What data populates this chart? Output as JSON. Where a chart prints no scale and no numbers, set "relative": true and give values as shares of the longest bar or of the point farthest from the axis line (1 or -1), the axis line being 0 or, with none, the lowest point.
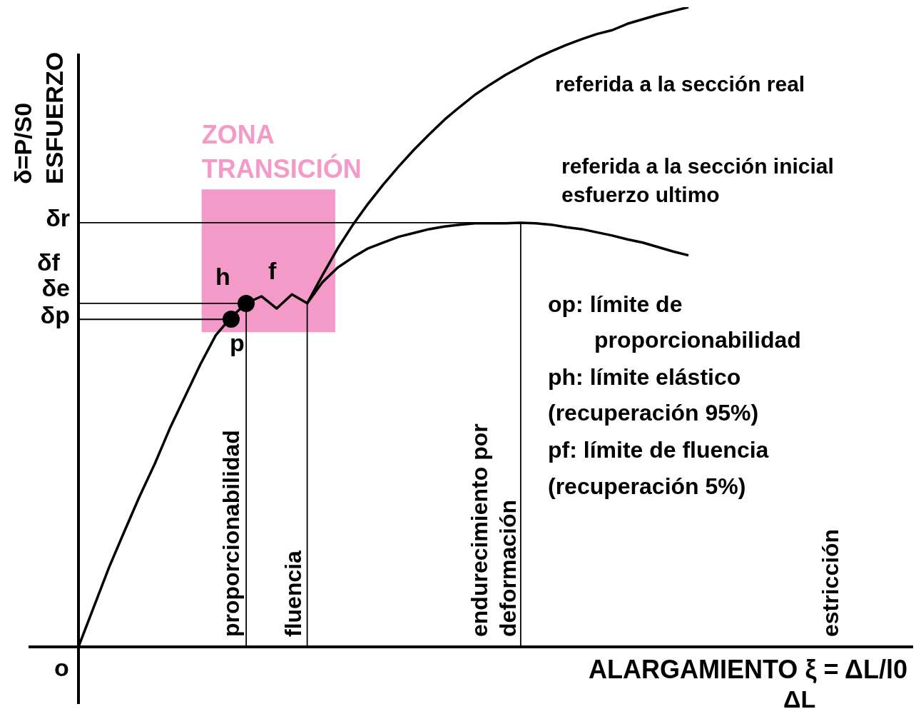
{
  "chart_data": {
    "type": "line",
    "relative": true,
    "xlabel": "ALARGAMIENTO ξ = ΔL/l0",
    "ylabel": "δ=P/S0 ESFUERZO",
    "categories": [
      null,
      null,
      null,
      null,
      null,
      null,
      null,
      null,
      null,
      null,
      null,
      null,
      null,
      null,
      null,
      null,
      null,
      null,
      null,
      null,
      null,
      null,
      null,
      null,
      null,
      null,
      null,
      null,
      null,
      null,
      null,
      null,
      null,
      null,
      null,
      null,
      null,
      null,
      null,
      null,
      null
    ],
    "series": [
      {
        "name": "referida a la sección inicial",
        "color": "#000000",
        "values": [
          0,
          0.062,
          0.124,
          0.18,
          0.235,
          0.286,
          0.342,
          0.392,
          0.442,
          0.487,
          0.515,
          0.537,
          0.548,
          0.529,
          0.551,
          0.537,
          0.57,
          0.593,
          0.609,
          0.623,
          0.632,
          0.641,
          0.647,
          0.653,
          0.657,
          0.66,
          0.662,
          0.662,
          0.662,
          0.663,
          0.662,
          0.66,
          0.656,
          0.653,
          0.648,
          0.643,
          0.637,
          0.632,
          0.625,
          0.618,
          0.612
        ]
      },
      {
        "name": "referida a la sección real",
        "color": "#000000",
        "values": [
          null,
          null,
          null,
          null,
          null,
          null,
          null,
          null,
          null,
          null,
          null,
          null,
          null,
          null,
          null,
          0.537,
          0.581,
          0.623,
          0.66,
          0.693,
          0.723,
          0.751,
          0.777,
          0.801,
          0.824,
          0.844,
          0.863,
          0.879,
          0.894,
          0.907,
          0.92,
          0.931,
          0.941,
          0.95,
          0.958,
          0.964,
          0.974,
          0.981,
          0.988,
          0.994,
          1
        ]
      }
    ],
    "ref_lines": [
      {
        "axis": "y",
        "value": 0.663,
        "label": "δr",
        "color": "#000000"
      },
      {
        "axis": "y",
        "value": 0.537,
        "label": "δe",
        "color": "#000000"
      },
      {
        "axis": "y",
        "value": 0.512,
        "label": "δp",
        "color": "#000000"
      }
    ],
    "bands": [
      {
        "axis": "y",
        "from": 0.492,
        "to": 0.715,
        "label": "ZONA TRANSICIÓN",
        "color": "#f49ac8"
      }
    ],
    "annotations": [
      "esfuerzo ultimo",
      "h",
      "f",
      "p",
      "op: límite de",
      "proporcionabilidad",
      "ph: límite elástico",
      "(recuperación 95%)",
      "pf: límite de fluencia",
      "(recuperación 5%)",
      "estricción",
      "ΔL",
      "δf",
      "o",
      "proporcionabilidad",
      "fluencia",
      "endurecimiento por",
      "deformación"
    ],
    "legend": false
  }
}
